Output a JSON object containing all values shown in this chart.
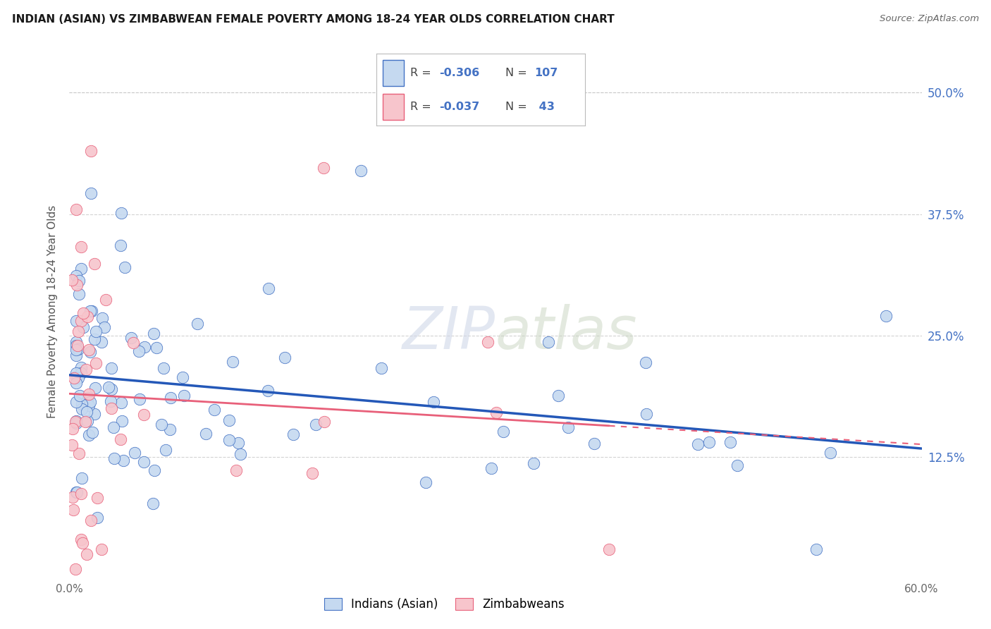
{
  "title": "INDIAN (ASIAN) VS ZIMBABWEAN FEMALE POVERTY AMONG 18-24 YEAR OLDS CORRELATION CHART",
  "source_text": "Source: ZipAtlas.com",
  "ylabel": "Female Poverty Among 18-24 Year Olds",
  "xlim": [
    0.0,
    0.6
  ],
  "ylim": [
    0.0,
    0.55
  ],
  "ytick_right_labels": [
    "50.0%",
    "37.5%",
    "25.0%",
    "12.5%"
  ],
  "ytick_right_values": [
    0.5,
    0.375,
    0.25,
    0.125
  ],
  "background_color": "#ffffff",
  "grid_color": "#c8c8c8",
  "watermark_text": "ZIPatlas",
  "indian_fill_color": "#c5d9f0",
  "indian_edge_color": "#4472c4",
  "zimbabwean_fill_color": "#f7c5cc",
  "zimbabwean_edge_color": "#e8607a",
  "indian_line_color": "#2458b8",
  "zimbabwean_line_color": "#e8607a",
  "legend_label_indian": "Indians (Asian)",
  "legend_label_zimbabwean": "Zimbabweans",
  "title_fontsize": 11,
  "source_fontsize": 9.5
}
